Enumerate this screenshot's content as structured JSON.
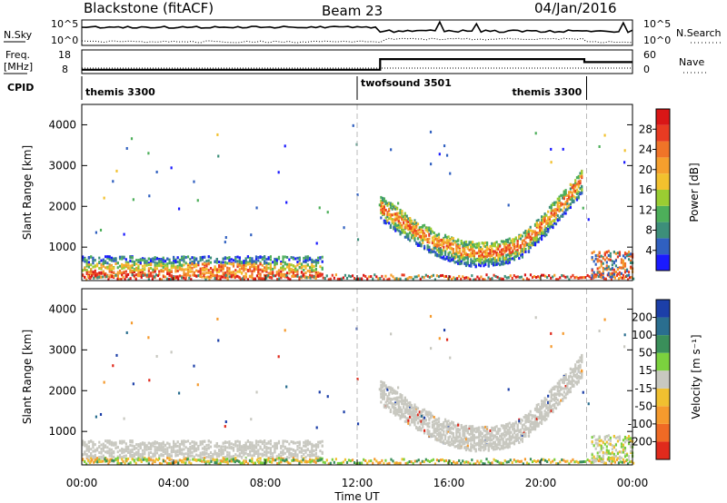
{
  "header": {
    "station": "Blackstone (fitACF)",
    "beam": "Beam 23",
    "date": "04/Jan/2016"
  },
  "top_panels": {
    "nsky_label": "N.Sky",
    "nsky_ticks": [
      "10^5",
      "10^0"
    ],
    "nsearch_label": "N.Search",
    "nsearch_ticks": [
      "10^5",
      "10^0"
    ],
    "freq_label": "Freq.",
    "freq_unit": "[MHz]",
    "freq_ticks": [
      "18",
      "8"
    ],
    "nave_label": "Nave",
    "nave_ticks": [
      "60",
      "0"
    ],
    "cpid_label": "CPID",
    "cpid_segments": [
      {
        "start_hr": 0,
        "end_hr": 12.0,
        "label": "themis 3300"
      },
      {
        "start_hr": 12.0,
        "end_hr": 22.0,
        "label": "twofsound 3501"
      },
      {
        "start_hr": 22.0,
        "end_hr": 24,
        "label": "themis 3300"
      }
    ],
    "freq_steps": [
      {
        "start_hr": 0,
        "end_hr": 13.0,
        "freq_mhz": 10.4
      },
      {
        "start_hr": 13.0,
        "end_hr": 21.9,
        "freq_mhz": 14.9
      },
      {
        "start_hr": 21.9,
        "end_hr": 24,
        "freq_mhz": 13.6
      }
    ]
  },
  "chart_data": [
    {
      "type": "heatmap",
      "name": "power",
      "ylabel": "Slant Range [km]",
      "xlabel": "Time UT",
      "x_ticks": [
        "00:00",
        "04:00",
        "08:00",
        "12:00",
        "16:00",
        "20:00",
        "00:00"
      ],
      "x_range_hr": [
        0,
        24
      ],
      "y_ticks": [
        1000,
        2000,
        3000,
        4000
      ],
      "y_range_km": [
        180,
        4500
      ],
      "colorbar_label": "Power [dB]",
      "colorbar_ticks": [
        4,
        8,
        12,
        16,
        20,
        24,
        28
      ],
      "colorbar_range": [
        0,
        32
      ],
      "colors": [
        "#1a1aff",
        "#3060c0",
        "#3d8f7a",
        "#4daf5a",
        "#9acd32",
        "#f2c12e",
        "#f59f2d",
        "#f07428",
        "#e83b22",
        "#d91616"
      ],
      "dashed_markers_hr": [
        12.0,
        22.0
      ]
    },
    {
      "type": "heatmap",
      "name": "velocity",
      "ylabel": "Slant Range [km]",
      "xlabel": "Time UT",
      "x_ticks": [
        "00:00",
        "04:00",
        "08:00",
        "12:00",
        "16:00",
        "20:00",
        "00:00"
      ],
      "x_range_hr": [
        0,
        24
      ],
      "y_ticks": [
        1000,
        2000,
        3000,
        4000
      ],
      "y_range_km": [
        180,
        4500
      ],
      "colorbar_label": "Velocity [m s⁻¹]",
      "colorbar_ticks": [
        200,
        100,
        50,
        15,
        -15,
        -50,
        -100,
        -200
      ],
      "colors": [
        "#1c3fa8",
        "#2a6e8f",
        "#3a8f5a",
        "#7bd13e",
        "#c8c8c0",
        "#f0c030",
        "#f59a2d",
        "#ef6a25",
        "#e02a1c"
      ],
      "dashed_markers_hr": [
        12.0,
        22.0
      ]
    }
  ]
}
